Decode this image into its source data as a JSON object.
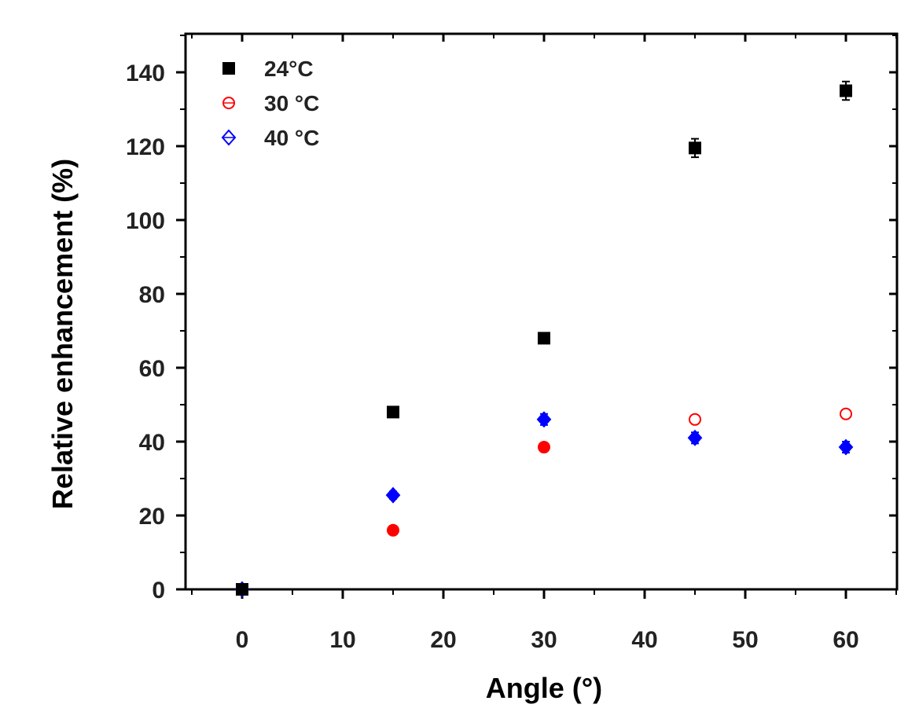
{
  "chart_data": {
    "type": "scatter",
    "title": "",
    "xlabel": "Angle (°)",
    "ylabel": "Relative enhancement (%)",
    "xlim": [
      -5,
      65
    ],
    "ylim": [
      0,
      150
    ],
    "xticks": [
      0,
      10,
      20,
      30,
      40,
      50,
      60
    ],
    "xtick_labels": [
      "0",
      "10",
      "20",
      "30",
      "40",
      "50",
      "60"
    ],
    "yticks": [
      0,
      20,
      40,
      60,
      80,
      100,
      120,
      140
    ],
    "ytick_labels": [
      "0",
      "20",
      "40",
      "60",
      "80",
      "100",
      "120",
      "140"
    ],
    "grid": false,
    "legend_position": "top-left",
    "series": [
      {
        "name": "24°C",
        "marker": "square",
        "color": "#000000",
        "x": [
          0,
          15,
          30,
          45,
          60
        ],
        "y": [
          0,
          48,
          68,
          119.5,
          135
        ],
        "error": [
          0.5,
          1,
          1,
          2.5,
          2.5
        ]
      },
      {
        "name": "30 °C",
        "marker": "circle",
        "color": "#ff0000",
        "x": [
          0,
          15,
          30,
          45,
          60
        ],
        "y": [
          0,
          16,
          38.5,
          46,
          47.5
        ],
        "error": [
          0.5,
          1,
          1,
          1,
          1
        ]
      },
      {
        "name": "40 °C",
        "marker": "diamond",
        "color": "#0000ff",
        "x": [
          0,
          15,
          30,
          45,
          60
        ],
        "y": [
          0,
          25.5,
          46,
          41,
          38.5
        ],
        "error": [
          0.5,
          1,
          1.5,
          1.5,
          1.5
        ]
      }
    ]
  }
}
